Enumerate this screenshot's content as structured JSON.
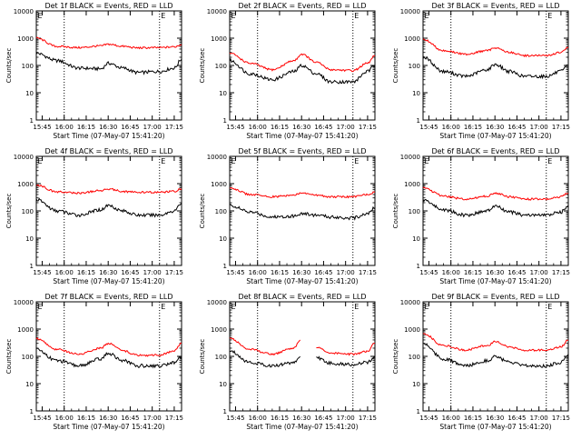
{
  "figure": {
    "title_template": "Det {n}f BLACK = Events, RED = LLD",
    "xlabel": "Start Time (07-May-07 15:41:20)",
    "ylabel": "Counts/sec",
    "x_ticks": [
      "15:45",
      "16:00",
      "16:15",
      "16:30",
      "16:45",
      "17:00",
      "17:15"
    ],
    "y_ticks": [
      "1",
      "10",
      "100",
      "1000",
      "10000"
    ],
    "marker_text": "E"
  },
  "colors": {
    "events": "#000000",
    "lld": "#ff0000",
    "axes": "#000000",
    "background": "#ffffff"
  },
  "chart_data": [
    {
      "type": "line",
      "title": "Det 1f BLACK = Events, RED = LLD",
      "xlabel": "Start Time (07-May-07 15:41:20)",
      "ylabel": "Counts/sec",
      "y_scale": "log",
      "ylim": [
        1,
        10000
      ],
      "xlim": [
        "15:41",
        "17:20"
      ],
      "vlines": [
        "16:00",
        "17:05",
        "17:20"
      ],
      "x": [
        "15:41",
        "15:55",
        "16:10",
        "16:25",
        "16:30",
        "16:40",
        "16:50",
        "17:05",
        "17:15",
        "17:20"
      ],
      "series": [
        {
          "name": "Events",
          "color": "#000000",
          "values": [
            280,
            150,
            80,
            75,
            120,
            80,
            55,
            60,
            80,
            170
          ]
        },
        {
          "name": "LLD",
          "color": "#ff0000",
          "values": [
            1000,
            500,
            450,
            520,
            600,
            500,
            440,
            450,
            480,
            580
          ]
        }
      ]
    },
    {
      "type": "line",
      "title": "Det 2f BLACK = Events, RED = LLD",
      "xlabel": "Start Time (07-May-07 15:41:20)",
      "ylabel": "Counts/sec",
      "y_scale": "log",
      "ylim": [
        1,
        10000
      ],
      "xlim": [
        "15:41",
        "17:20"
      ],
      "vlines": [
        "16:00",
        "17:05",
        "17:20"
      ],
      "x": [
        "15:41",
        "15:55",
        "16:10",
        "16:25",
        "16:30",
        "16:40",
        "16:50",
        "17:05",
        "17:15",
        "17:20"
      ],
      "series": [
        {
          "name": "Events",
          "color": "#000000",
          "values": [
            150,
            50,
            30,
            60,
            100,
            50,
            25,
            25,
            60,
            100
          ]
        },
        {
          "name": "LLD",
          "color": "#ff0000",
          "values": [
            280,
            120,
            70,
            150,
            260,
            130,
            70,
            65,
            120,
            230
          ]
        }
      ]
    },
    {
      "type": "line",
      "title": "Det 3f BLACK = Events, RED = LLD",
      "xlabel": "Start Time (07-May-07 15:41:20)",
      "ylabel": "Counts/sec",
      "y_scale": "log",
      "ylim": [
        1,
        10000
      ],
      "xlim": [
        "15:41",
        "17:20"
      ],
      "vlines": [
        "16:00",
        "17:05",
        "17:20"
      ],
      "x": [
        "15:41",
        "15:55",
        "16:10",
        "16:25",
        "16:30",
        "16:40",
        "16:50",
        "17:05",
        "17:15",
        "17:20"
      ],
      "series": [
        {
          "name": "Events",
          "color": "#000000",
          "values": [
            200,
            60,
            40,
            70,
            110,
            60,
            40,
            40,
            60,
            100
          ]
        },
        {
          "name": "LLD",
          "color": "#ff0000",
          "values": [
            900,
            350,
            260,
            350,
            450,
            300,
            230,
            230,
            300,
            450
          ]
        }
      ]
    },
    {
      "type": "line",
      "title": "Det 4f BLACK = Events, RED = LLD",
      "xlabel": "Start Time (07-May-07 15:41:20)",
      "ylabel": "Counts/sec",
      "y_scale": "log",
      "ylim": [
        1,
        10000
      ],
      "xlim": [
        "15:41",
        "17:20"
      ],
      "vlines": [
        "16:00",
        "17:05",
        "17:20"
      ],
      "x": [
        "15:41",
        "15:55",
        "16:10",
        "16:25",
        "16:30",
        "16:40",
        "16:50",
        "17:05",
        "17:15",
        "17:20"
      ],
      "series": [
        {
          "name": "Events",
          "color": "#000000",
          "values": [
            260,
            100,
            70,
            110,
            160,
            100,
            70,
            70,
            100,
            190
          ]
        },
        {
          "name": "LLD",
          "color": "#ff0000",
          "values": [
            900,
            500,
            450,
            550,
            650,
            520,
            480,
            480,
            520,
            650
          ]
        }
      ]
    },
    {
      "type": "line",
      "title": "Det 5f BLACK = Events, RED = LLD",
      "xlabel": "Start Time (07-May-07 15:41:20)",
      "ylabel": "Counts/sec",
      "y_scale": "log",
      "ylim": [
        1,
        10000
      ],
      "xlim": [
        "15:41",
        "17:20"
      ],
      "vlines": [
        "16:00",
        "17:05",
        "17:20"
      ],
      "x": [
        "15:41",
        "15:55",
        "16:10",
        "16:25",
        "16:30",
        "16:40",
        "16:50",
        "17:05",
        "17:15",
        "17:20"
      ],
      "series": [
        {
          "name": "Events",
          "color": "#000000",
          "values": [
            160,
            90,
            60,
            65,
            80,
            70,
            60,
            55,
            80,
            130
          ]
        },
        {
          "name": "LLD",
          "color": "#ff0000",
          "values": [
            700,
            400,
            330,
            380,
            450,
            380,
            330,
            330,
            400,
            500
          ]
        }
      ]
    },
    {
      "type": "line",
      "title": "Det 6f BLACK = Events, RED = LLD",
      "xlabel": "Start Time (07-May-07 15:41:20)",
      "ylabel": "Counts/sec",
      "y_scale": "log",
      "ylim": [
        1,
        10000
      ],
      "xlim": [
        "15:41",
        "17:20"
      ],
      "vlines": [
        "16:00",
        "17:05",
        "17:20"
      ],
      "x": [
        "15:41",
        "15:55",
        "16:10",
        "16:25",
        "16:30",
        "16:40",
        "16:50",
        "17:05",
        "17:15",
        "17:20"
      ],
      "series": [
        {
          "name": "Events",
          "color": "#000000",
          "values": [
            250,
            110,
            70,
            100,
            150,
            90,
            70,
            70,
            90,
            160
          ]
        },
        {
          "name": "LLD",
          "color": "#ff0000",
          "values": [
            700,
            350,
            270,
            350,
            450,
            330,
            270,
            270,
            330,
            450
          ]
        }
      ]
    },
    {
      "type": "line",
      "title": "Det 7f BLACK = Events, RED = LLD",
      "xlabel": "Start Time (07-May-07 15:41:20)",
      "ylabel": "Counts/sec",
      "y_scale": "log",
      "ylim": [
        1,
        10000
      ],
      "xlim": [
        "15:41",
        "17:20"
      ],
      "vlines": [
        "16:00",
        "17:05",
        "17:20"
      ],
      "x": [
        "15:41",
        "15:55",
        "16:10",
        "16:25",
        "16:30",
        "16:40",
        "16:50",
        "17:05",
        "17:15",
        "17:20"
      ],
      "series": [
        {
          "name": "Events",
          "color": "#000000",
          "values": [
            180,
            70,
            45,
            80,
            130,
            70,
            45,
            45,
            60,
            100
          ]
        },
        {
          "name": "LLD",
          "color": "#ff0000",
          "values": [
            450,
            180,
            120,
            200,
            300,
            160,
            110,
            110,
            160,
            300
          ]
        }
      ]
    },
    {
      "type": "line",
      "title": "Det 8f BLACK = Events, RED = LLD",
      "xlabel": "Start Time (07-May-07 15:41:20)",
      "ylabel": "Counts/sec",
      "y_scale": "log",
      "ylim": [
        1,
        10000
      ],
      "xlim": [
        "15:41",
        "17:20"
      ],
      "vlines": [
        "16:00",
        "17:05",
        "17:20"
      ],
      "x": [
        "15:41",
        "15:55",
        "16:10",
        "16:25",
        "16:29",
        "16:31",
        "16:40",
        "16:50",
        "17:05",
        "17:15",
        "17:20"
      ],
      "series": [
        {
          "name": "Events",
          "color": "#000000",
          "values": [
            160,
            60,
            45,
            60,
            100,
            null,
            90,
            55,
            50,
            60,
            90
          ]
        },
        {
          "name": "LLD",
          "color": "#ff0000",
          "values": [
            450,
            180,
            120,
            200,
            400,
            null,
            220,
            130,
            120,
            150,
            300
          ]
        }
      ]
    },
    {
      "type": "line",
      "title": "Det 9f BLACK = Events, RED = LLD",
      "xlabel": "Start Time (07-May-07 15:41:20)",
      "ylabel": "Counts/sec",
      "y_scale": "log",
      "ylim": [
        1,
        10000
      ],
      "xlim": [
        "15:41",
        "17:20"
      ],
      "vlines": [
        "16:00",
        "17:05",
        "17:20"
      ],
      "x": [
        "15:41",
        "15:55",
        "16:10",
        "16:25",
        "16:30",
        "16:40",
        "16:50",
        "17:05",
        "17:15",
        "17:20"
      ],
      "series": [
        {
          "name": "Events",
          "color": "#000000",
          "values": [
            300,
            80,
            45,
            70,
            100,
            60,
            45,
            45,
            60,
            120
          ]
        },
        {
          "name": "LLD",
          "color": "#ff0000",
          "values": [
            700,
            250,
            170,
            250,
            350,
            220,
            170,
            170,
            220,
            400
          ]
        }
      ]
    }
  ]
}
